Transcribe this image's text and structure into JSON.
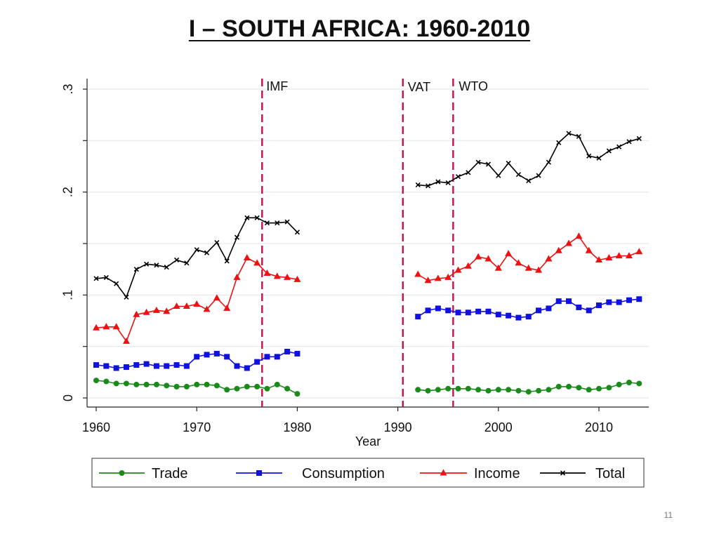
{
  "slide": {
    "title": "I – SOUTH AFRICA: 1960-2010",
    "page_number": "11"
  },
  "chart_data": {
    "type": "line",
    "title": "I – SOUTH AFRICA: 1960-2010",
    "xlabel": "Year",
    "ylabel": "",
    "xlim": [
      1959,
      2015
    ],
    "ylim": [
      0,
      0.3
    ],
    "xticks": [
      1960,
      1970,
      1980,
      1990,
      2000,
      2010
    ],
    "yticks": [
      0,
      0.1,
      0.2,
      0.3
    ],
    "ytick_labels": [
      "0",
      ".1",
      ".2",
      ".3"
    ],
    "grid": true,
    "legend_position": "bottom",
    "annotations": [
      {
        "label": "IMF",
        "x": 1976.5
      },
      {
        "label": "VAT",
        "x": 1990.5
      },
      {
        "label": "WTO",
        "x": 1995.5
      }
    ],
    "series": [
      {
        "name": "Trade",
        "color": "#1a8a1a",
        "marker": "circle",
        "segments": [
          {
            "x": [
              1960,
              1961,
              1962,
              1963,
              1964,
              1965,
              1966,
              1967,
              1968,
              1969,
              1970,
              1971,
              1972,
              1973,
              1974,
              1975,
              1976,
              1977,
              1978,
              1979,
              1980
            ],
            "y": [
              0.017,
              0.016,
              0.014,
              0.014,
              0.013,
              0.013,
              0.013,
              0.012,
              0.011,
              0.011,
              0.013,
              0.013,
              0.012,
              0.008,
              0.009,
              0.011,
              0.011,
              0.009,
              0.013,
              0.009,
              0.004
            ]
          },
          {
            "x": [
              1992,
              1993,
              1994,
              1995,
              1996,
              1997,
              1998,
              1999,
              2000,
              2001,
              2002,
              2003,
              2004,
              2005,
              2006,
              2007,
              2008,
              2009,
              2010,
              2011,
              2012,
              2013,
              2014
            ],
            "y": [
              0.008,
              0.007,
              0.008,
              0.009,
              0.009,
              0.009,
              0.008,
              0.007,
              0.008,
              0.008,
              0.007,
              0.006,
              0.007,
              0.008,
              0.011,
              0.011,
              0.01,
              0.008,
              0.009,
              0.01,
              0.013,
              0.015,
              0.014
            ]
          }
        ]
      },
      {
        "name": "Consumption",
        "color": "#1010e0",
        "marker": "square",
        "segments": [
          {
            "x": [
              1960,
              1961,
              1962,
              1963,
              1964,
              1965,
              1966,
              1967,
              1968,
              1969,
              1970,
              1971,
              1972,
              1973,
              1974,
              1975,
              1976,
              1977,
              1978,
              1979,
              1980
            ],
            "y": [
              0.032,
              0.031,
              0.029,
              0.03,
              0.032,
              0.033,
              0.031,
              0.031,
              0.032,
              0.031,
              0.04,
              0.042,
              0.043,
              0.04,
              0.031,
              0.029,
              0.035,
              0.04,
              0.04,
              0.045,
              0.043
            ]
          },
          {
            "x": [
              1992,
              1993,
              1994,
              1995,
              1996,
              1997,
              1998,
              1999,
              2000,
              2001,
              2002,
              2003,
              2004,
              2005,
              2006,
              2007,
              2008,
              2009,
              2010,
              2011,
              2012,
              2013,
              2014
            ],
            "y": [
              0.079,
              0.085,
              0.087,
              0.085,
              0.083,
              0.083,
              0.084,
              0.084,
              0.081,
              0.08,
              0.078,
              0.079,
              0.085,
              0.087,
              0.094,
              0.094,
              0.088,
              0.085,
              0.09,
              0.093,
              0.093,
              0.095,
              0.096
            ]
          }
        ]
      },
      {
        "name": "Income",
        "color": "#ee1111",
        "marker": "triangle",
        "segments": [
          {
            "x": [
              1960,
              1961,
              1962,
              1963,
              1964,
              1965,
              1966,
              1967,
              1968,
              1969,
              1970,
              1971,
              1972,
              1973,
              1974,
              1975,
              1976,
              1977,
              1978,
              1979,
              1980
            ],
            "y": [
              0.068,
              0.069,
              0.069,
              0.055,
              0.081,
              0.083,
              0.085,
              0.084,
              0.089,
              0.089,
              0.091,
              0.086,
              0.097,
              0.087,
              0.117,
              0.136,
              0.131,
              0.121,
              0.118,
              0.117,
              0.115
            ]
          },
          {
            "x": [
              1992,
              1993,
              1994,
              1995,
              1996,
              1997,
              1998,
              1999,
              2000,
              2001,
              2002,
              2003,
              2004,
              2005,
              2006,
              2007,
              2008,
              2009,
              2010,
              2011,
              2012,
              2013,
              2014
            ],
            "y": [
              0.12,
              0.114,
              0.116,
              0.117,
              0.124,
              0.128,
              0.137,
              0.135,
              0.126,
              0.14,
              0.131,
              0.126,
              0.124,
              0.135,
              0.143,
              0.15,
              0.157,
              0.143,
              0.134,
              0.136,
              0.138,
              0.138,
              0.142
            ]
          }
        ]
      },
      {
        "name": "Total",
        "color": "#000000",
        "marker": "x",
        "segments": [
          {
            "x": [
              1960,
              1961,
              1962,
              1963,
              1964,
              1965,
              1966,
              1967,
              1968,
              1969,
              1970,
              1971,
              1972,
              1973,
              1974,
              1975,
              1976,
              1977,
              1978,
              1979,
              1980
            ],
            "y": [
              0.116,
              0.117,
              0.111,
              0.098,
              0.125,
              0.13,
              0.129,
              0.127,
              0.134,
              0.131,
              0.144,
              0.141,
              0.151,
              0.133,
              0.156,
              0.175,
              0.175,
              0.17,
              0.17,
              0.171,
              0.161
            ]
          },
          {
            "x": [
              1992,
              1993,
              1994,
              1995,
              1996,
              1997,
              1998,
              1999,
              2000,
              2001,
              2002,
              2003,
              2004,
              2005,
              2006,
              2007,
              2008,
              2009,
              2010,
              2011,
              2012,
              2013,
              2014
            ],
            "y": [
              0.207,
              0.206,
              0.21,
              0.209,
              0.215,
              0.219,
              0.229,
              0.227,
              0.216,
              0.228,
              0.217,
              0.211,
              0.216,
              0.229,
              0.248,
              0.257,
              0.254,
              0.235,
              0.233,
              0.24,
              0.244,
              0.249,
              0.252
            ]
          }
        ]
      }
    ]
  }
}
